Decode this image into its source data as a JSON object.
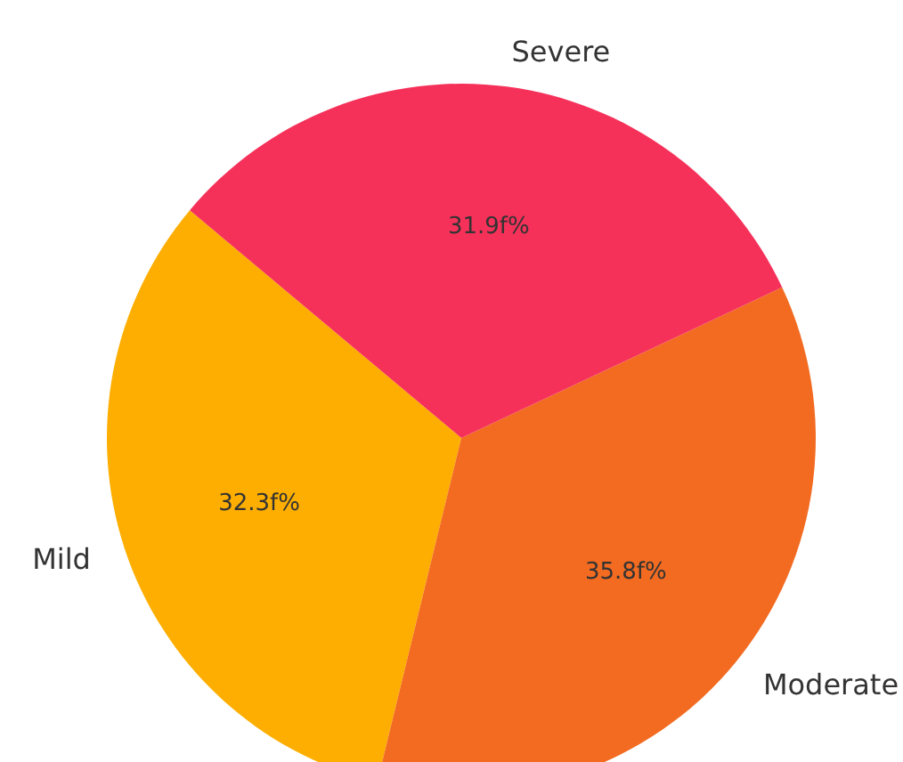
{
  "chart_data": {
    "type": "pie",
    "categories": [
      "Mild",
      "Moderate",
      "Severe"
    ],
    "values": [
      32.3,
      35.8,
      31.9
    ],
    "colors": [
      "#fdae00",
      "#f26b21",
      "#f5315a"
    ],
    "value_labels": [
      "32.3f%",
      "35.8f%",
      "31.9f%"
    ]
  }
}
